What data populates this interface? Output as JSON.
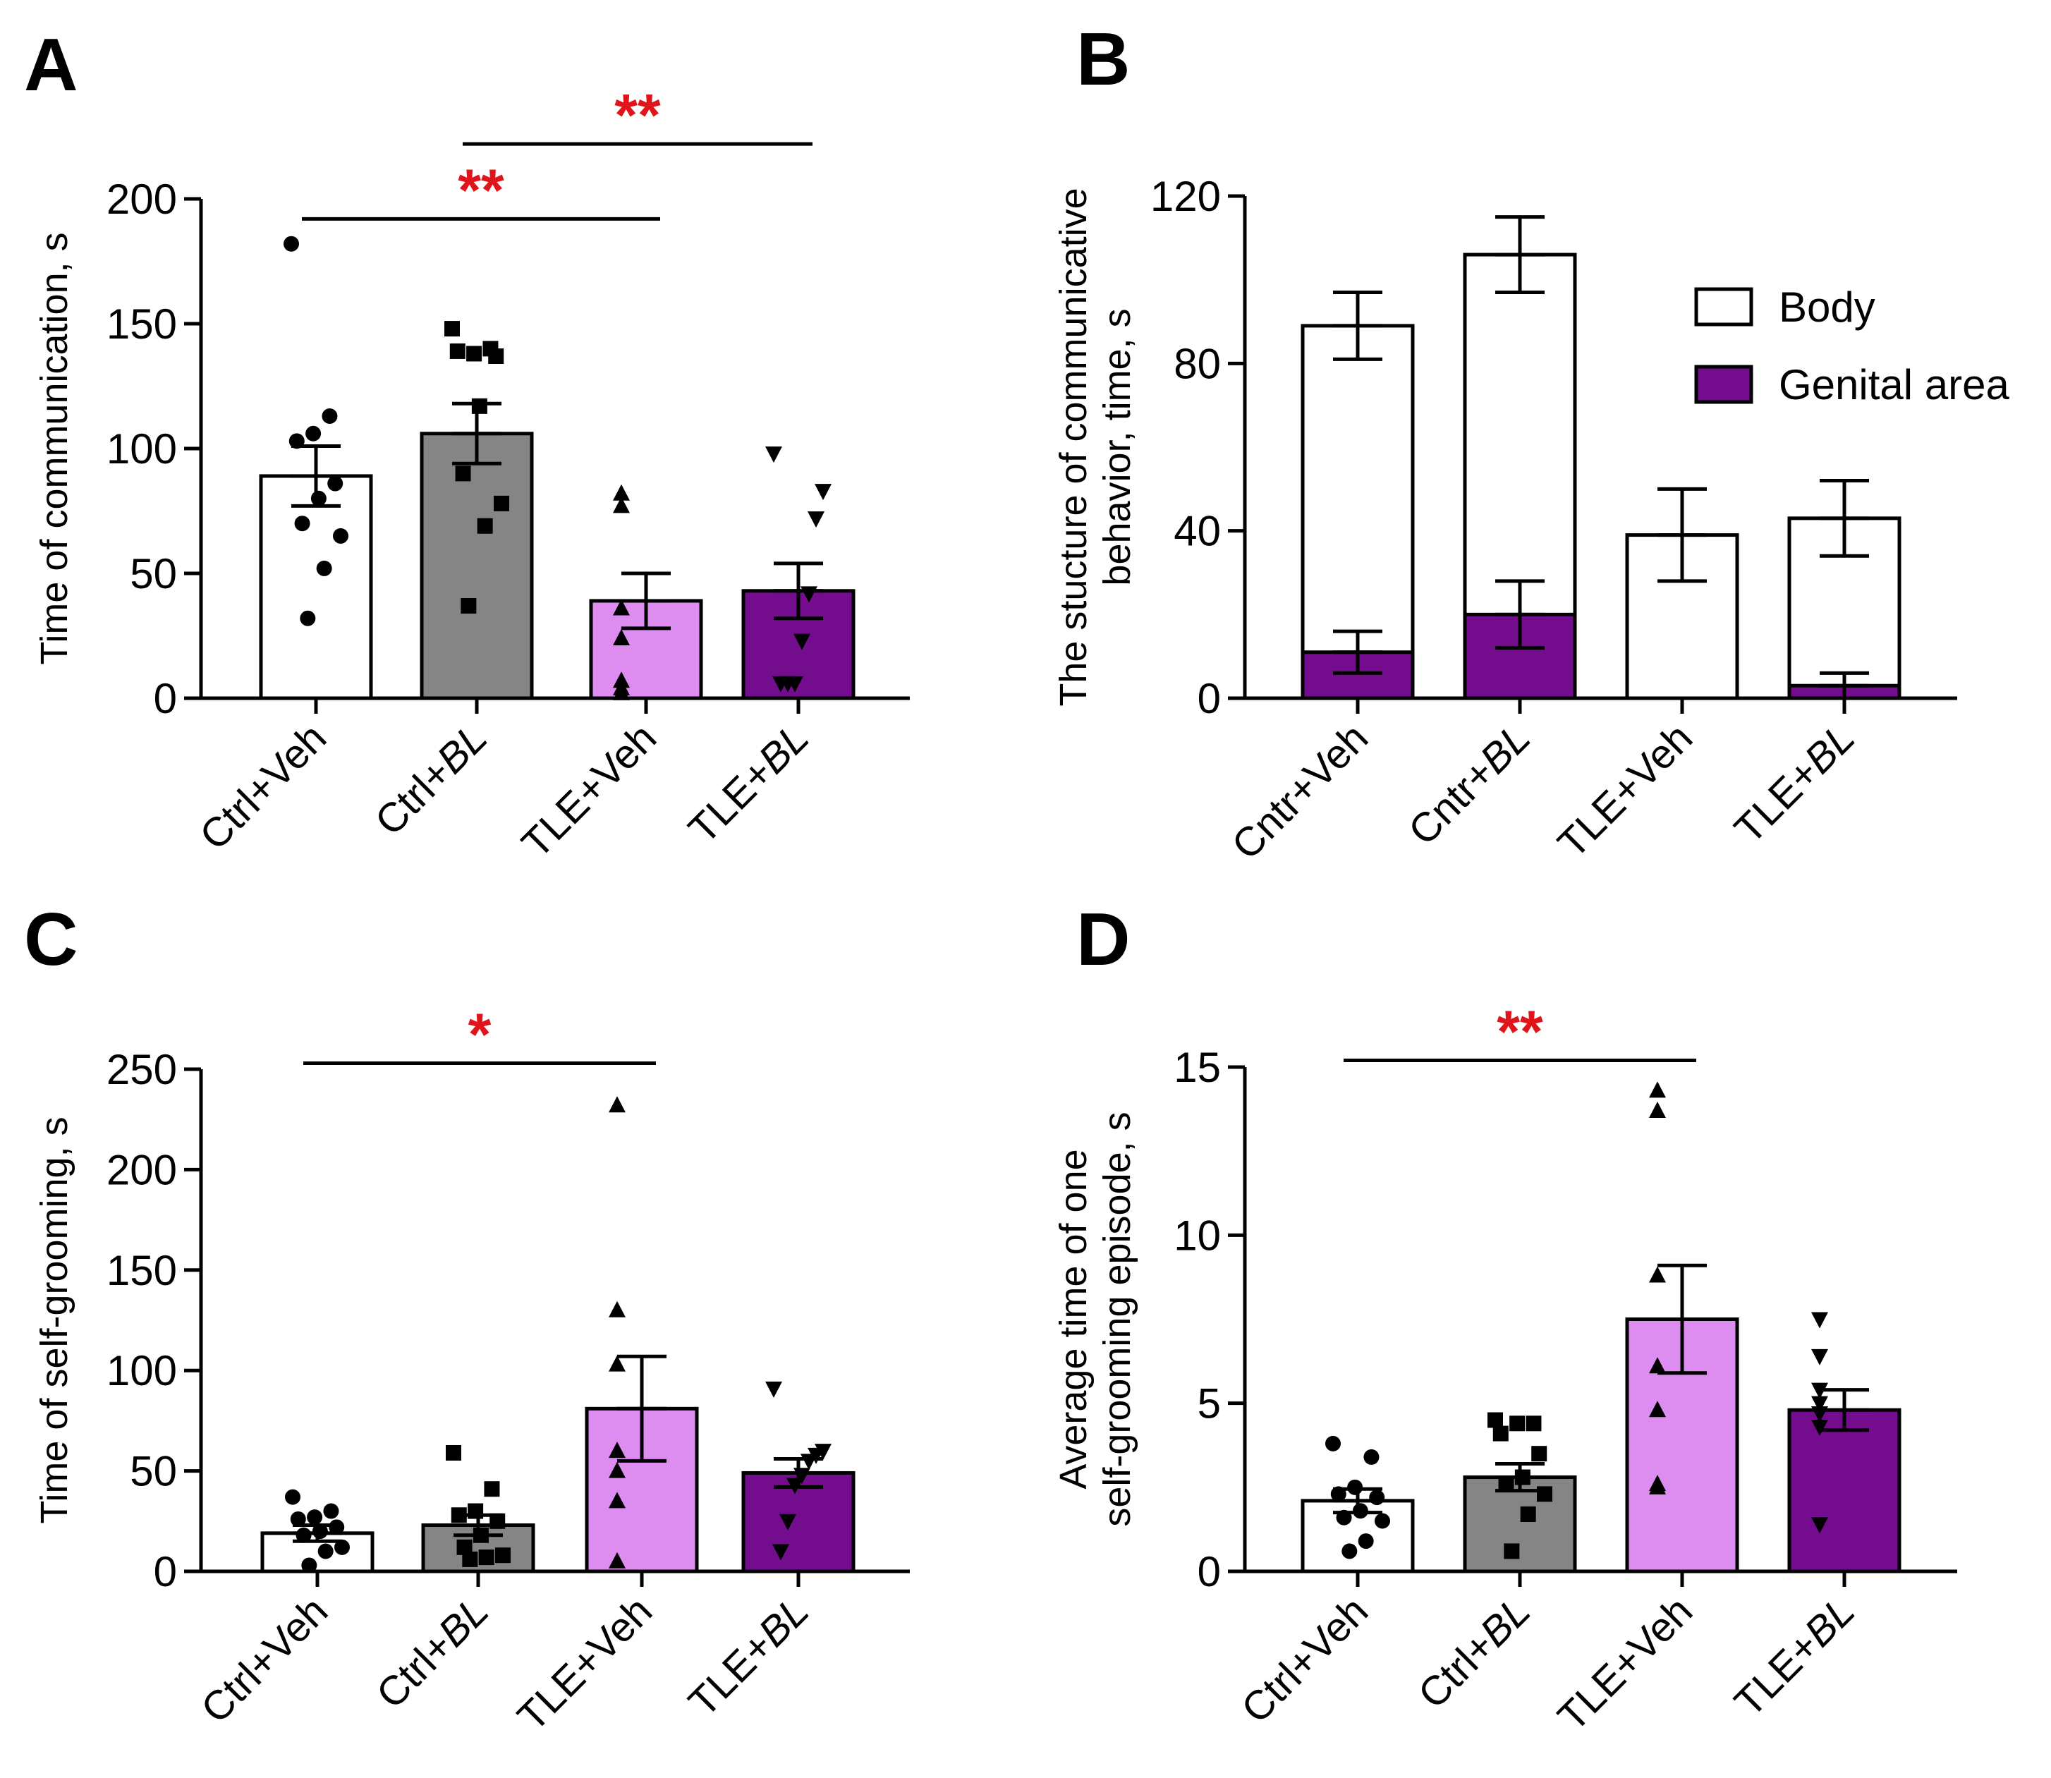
{
  "figure": {
    "colors": {
      "ctrl_veh": "#ffffff",
      "ctrl_bl": "#858585",
      "tle_veh": "#dd8cf0",
      "tle_bl": "#730d8e",
      "stroke": "#000000",
      "significance": "#e0151b"
    }
  },
  "chart_data": [
    {
      "panel": "A",
      "type": "bar",
      "title": "",
      "ylabel": [
        "Time of communication, s"
      ],
      "ylim": [
        0,
        200
      ],
      "yticks": [
        0,
        50,
        100,
        150,
        200
      ],
      "categories": [
        "Ctrl+Veh",
        "Ctrl+BL",
        "TLE+Veh",
        "TLE+BL"
      ],
      "italic_suffix": [
        false,
        true,
        false,
        true
      ],
      "values": [
        89,
        106,
        39,
        43
      ],
      "sem": [
        12,
        12,
        11,
        11
      ],
      "markers": [
        "circle",
        "square",
        "triangle-up",
        "triangle-down"
      ],
      "points": [
        [
          182,
          113,
          106,
          103,
          86,
          80,
          70,
          65,
          52,
          32
        ],
        [
          148,
          140,
          138,
          139,
          137,
          117,
          90,
          78,
          69,
          37
        ],
        [
          82,
          77,
          36,
          24,
          7,
          4,
          2
        ],
        [
          98,
          83,
          72,
          42,
          23,
          6,
          6,
          6
        ]
      ],
      "significance": [
        {
          "from": 0,
          "to": 2,
          "label": "**",
          "y": 192
        },
        {
          "from": 1,
          "to": 3,
          "label": "**",
          "y": 222
        }
      ]
    },
    {
      "panel": "B",
      "type": "stacked-bar",
      "title": "",
      "ylabel": [
        "The stucture of communicative",
        "behavior, time, s"
      ],
      "ylim": [
        0,
        120
      ],
      "yticks": [
        0,
        40,
        80,
        120
      ],
      "categories": [
        "Cntr+Veh",
        "Cntr+BL",
        "TLE+Veh",
        "TLE+BL"
      ],
      "italic_suffix": [
        false,
        true,
        false,
        true
      ],
      "series": [
        {
          "name": "Genital area",
          "values": [
            11,
            20,
            0,
            3
          ],
          "sem": [
            5,
            8,
            0,
            3
          ]
        },
        {
          "name": "Body",
          "values": [
            78,
            86,
            39,
            40
          ],
          "sem": [
            8,
            9,
            11,
            9
          ]
        }
      ],
      "totals": [
        89,
        106,
        39,
        43
      ],
      "legend": {
        "position": "top-right",
        "entries": [
          "Body",
          "Genital area"
        ]
      }
    },
    {
      "panel": "C",
      "type": "bar",
      "title": "",
      "ylabel": [
        "Time of self-grooming, s"
      ],
      "ylim": [
        0,
        250
      ],
      "yticks": [
        0,
        50,
        100,
        150,
        200,
        250
      ],
      "categories": [
        "Ctrl+Veh",
        "Ctrl+BL",
        "TLE+Veh",
        "TLE+BL"
      ],
      "italic_suffix": [
        false,
        true,
        false,
        true
      ],
      "values": [
        19,
        23,
        81,
        49
      ],
      "sem": [
        4,
        5,
        26,
        7
      ],
      "markers": [
        "circle",
        "square",
        "triangle-up",
        "triangle-down"
      ],
      "points": [
        [
          37,
          30,
          27,
          26,
          22,
          20,
          18,
          12,
          10,
          3
        ],
        [
          59,
          41,
          30,
          28,
          25,
          18,
          12,
          8,
          7,
          6
        ],
        [
          232,
          130,
          103,
          60,
          50,
          35,
          5
        ],
        [
          91,
          60,
          58,
          55,
          48,
          43,
          25,
          10
        ]
      ],
      "significance": [
        {
          "from": 0,
          "to": 2,
          "label": "*",
          "y": 253
        }
      ]
    },
    {
      "panel": "D",
      "type": "bar",
      "title": "",
      "ylabel": [
        "Average time of one",
        "self-grooming episode, s"
      ],
      "ylim": [
        0,
        15
      ],
      "yticks": [
        0,
        5,
        10,
        15
      ],
      "categories": [
        "Ctrl+Veh",
        "Ctrl+BL",
        "TLE+Veh",
        "TLE+BL"
      ],
      "italic_suffix": [
        false,
        true,
        false,
        true
      ],
      "values": [
        2.1,
        2.8,
        7.5,
        4.8
      ],
      "sem": [
        0.35,
        0.4,
        1.6,
        0.6
      ],
      "markers": [
        "circle",
        "square",
        "triangle-up",
        "triangle-down"
      ],
      "points": [
        [
          3.8,
          3.4,
          2.5,
          2.3,
          2.2,
          1.8,
          1.6,
          1.5,
          0.9,
          0.6
        ],
        [
          4.5,
          4.4,
          4.4,
          4.1,
          3.5,
          2.8,
          2.6,
          2.3,
          1.7,
          0.6
        ],
        [
          14.3,
          13.7,
          8.8,
          6.1,
          4.8,
          2.6,
          2.5
        ],
        [
          7.5,
          6.4,
          5.4,
          5.0,
          4.7,
          4.3,
          1.4
        ]
      ],
      "significance": [
        {
          "from": 0,
          "to": 2,
          "label": "**",
          "y": 15.2
        }
      ]
    }
  ]
}
